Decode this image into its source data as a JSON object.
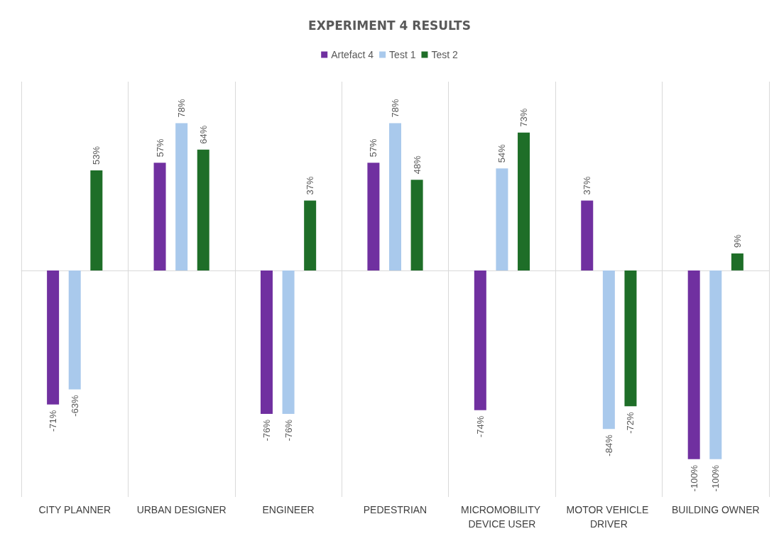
{
  "chart_data": {
    "type": "bar",
    "title": "EXPERIMENT 4 RESULTS",
    "categories": [
      "CITY PLANNER",
      "URBAN DESIGNER",
      "ENGINEER",
      "PEDESTRIAN",
      "MICROMOBILITY DEVICE USER",
      "MOTOR VEHICLE DRIVER",
      "BUILDING OWNER"
    ],
    "series": [
      {
        "name": "Artefact 4",
        "color": "#7030a0",
        "values": [
          -71,
          57,
          -76,
          57,
          -74,
          37,
          -100
        ],
        "value_labels": [
          "-71%",
          "57%",
          "-76%",
          "57%",
          "-74%",
          "37%",
          "-100%"
        ]
      },
      {
        "name": "Test 1",
        "color": "#a9c9ec",
        "values": [
          -63,
          78,
          -76,
          78,
          54,
          -84,
          -100
        ],
        "value_labels": [
          "-63%",
          "78%",
          "-76%",
          "78%",
          "54%",
          "-84%",
          "-100%"
        ]
      },
      {
        "name": "Test 2",
        "color": "#1e6e28",
        "values": [
          53,
          64,
          37,
          48,
          73,
          -72,
          9
        ],
        "value_labels": [
          "53%",
          "64%",
          "37%",
          "48%",
          "73%",
          "-72%",
          "9%"
        ]
      }
    ],
    "ylim": [
      -120,
      100
    ],
    "tick_labels": "x",
    "grid": "x",
    "legend": "top"
  }
}
